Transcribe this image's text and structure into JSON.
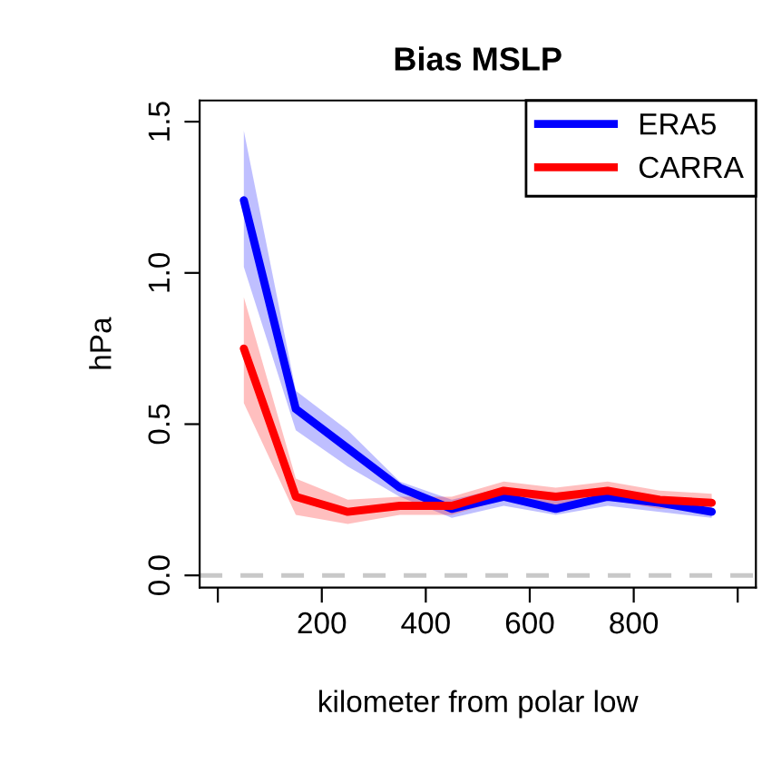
{
  "chart_data": {
    "type": "line",
    "title": "Bias MSLP",
    "xlabel": "kilometer from polar low",
    "ylabel": "hPa",
    "x": [
      50,
      150,
      250,
      350,
      450,
      550,
      650,
      750,
      850,
      950
    ],
    "series": [
      {
        "name": "ERA5",
        "color": "#0000ff",
        "values": [
          1.24,
          0.55,
          0.42,
          0.29,
          0.22,
          0.26,
          0.22,
          0.26,
          0.24,
          0.21
        ],
        "lower": [
          1.02,
          0.48,
          0.36,
          0.26,
          0.19,
          0.23,
          0.2,
          0.23,
          0.21,
          0.19
        ],
        "upper": [
          1.47,
          0.61,
          0.48,
          0.31,
          0.25,
          0.29,
          0.25,
          0.29,
          0.26,
          0.24
        ]
      },
      {
        "name": "CARRA",
        "color": "#ff0000",
        "values": [
          0.75,
          0.26,
          0.21,
          0.23,
          0.23,
          0.28,
          0.26,
          0.28,
          0.25,
          0.24
        ],
        "lower": [
          0.57,
          0.2,
          0.17,
          0.2,
          0.2,
          0.25,
          0.23,
          0.25,
          0.22,
          0.22
        ],
        "upper": [
          0.92,
          0.32,
          0.25,
          0.26,
          0.26,
          0.31,
          0.29,
          0.31,
          0.28,
          0.27
        ]
      }
    ],
    "xlim": [
      -35,
      1035
    ],
    "ylim": [
      -0.04,
      1.57
    ],
    "xticks": [
      {
        "value": 0,
        "label": null
      },
      200,
      400,
      600,
      800,
      {
        "value": 1000,
        "label": null
      }
    ],
    "yticks": [
      {
        "value": 0,
        "label": "0.0"
      },
      {
        "value": 0.5,
        "label": "0.5"
      },
      {
        "value": 1,
        "label": "1.0"
      },
      {
        "value": 1.5,
        "label": "1.5"
      }
    ],
    "ref_lines": [
      {
        "axis": "y",
        "value": 0,
        "label": null,
        "color": "#c8c8c8",
        "line_style": "dashed"
      }
    ],
    "legend": "top right",
    "grid": false,
    "marker": "none",
    "line_style": "solid"
  }
}
